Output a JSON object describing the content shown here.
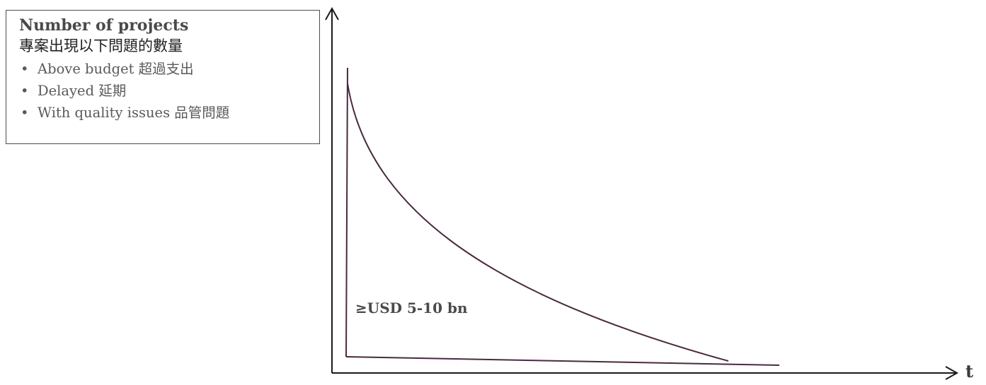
{
  "legend": {
    "title": "Number of projects",
    "subtitle": "專案出現以下問題的數量",
    "items": [
      {
        "label": "Above budget 超過支出"
      },
      {
        "label": "Delayed 延期"
      },
      {
        "label": "With quality issues 品管問題"
      }
    ],
    "bullet": "•"
  },
  "curve_label": "≥USD 5-10 bn",
  "x_axis_label": "t",
  "colors": {
    "curve": "#4a2a3f",
    "axis": "#1a1a1a",
    "text": "#4a4a4a"
  }
}
